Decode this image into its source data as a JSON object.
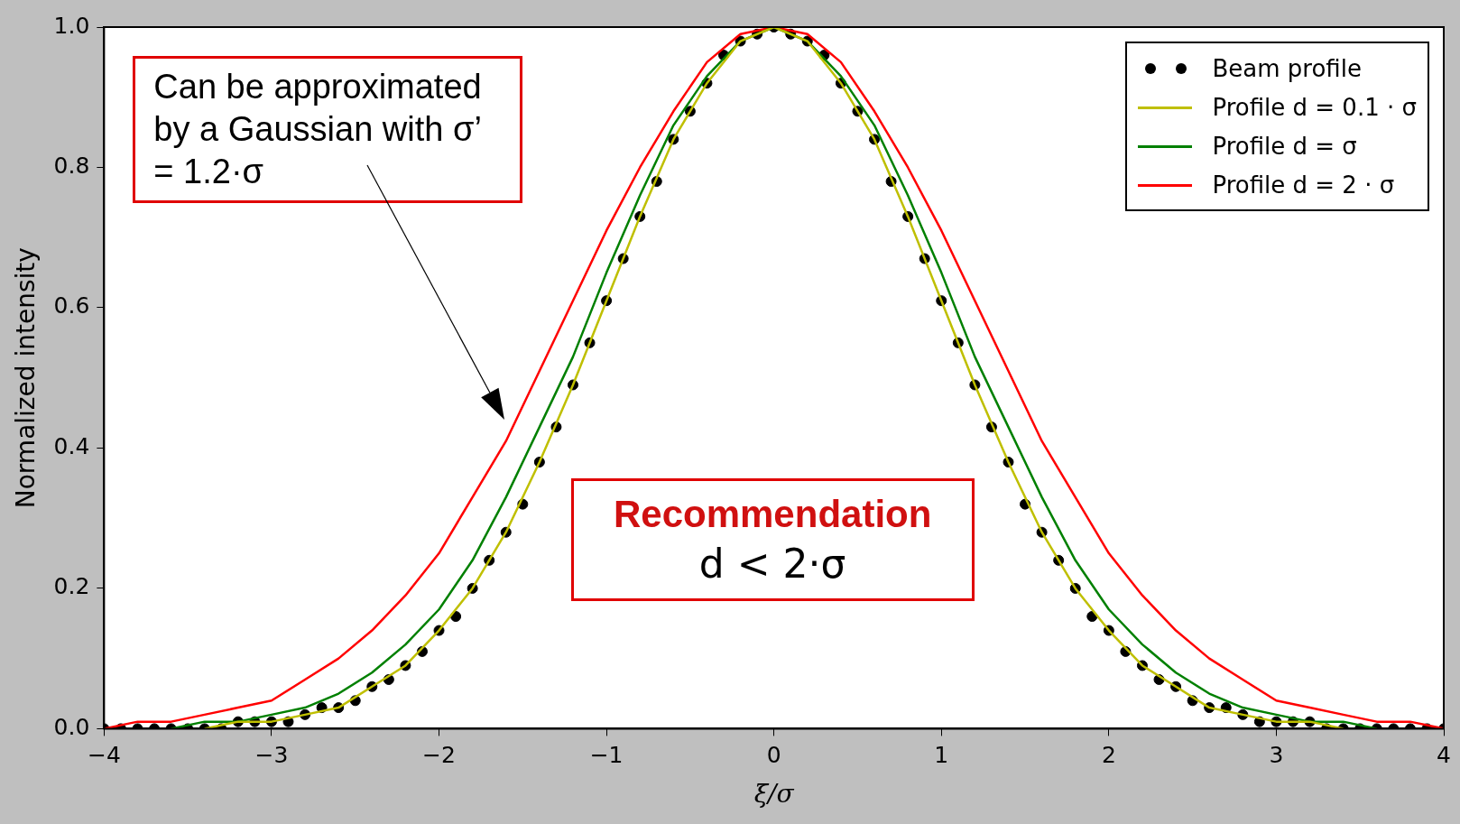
{
  "chart_data": {
    "type": "line",
    "xlabel": "ξ/σ",
    "ylabel": "Normalized intensity",
    "xlim": [
      -4,
      4
    ],
    "xticks": [
      {
        "value": -4,
        "label": "−4"
      },
      {
        "value": -3,
        "label": "−3"
      },
      {
        "value": -2,
        "label": "−2"
      },
      {
        "value": -1,
        "label": "−1"
      },
      0,
      1,
      2,
      3,
      4
    ],
    "ylim": [
      0,
      1
    ],
    "yticks": [
      {
        "value": 0,
        "label": "0.0"
      },
      {
        "value": 0.2,
        "label": "0.2"
      },
      {
        "value": 0.4,
        "label": "0.4"
      },
      {
        "value": 0.6,
        "label": "0.6"
      },
      {
        "value": 0.8,
        "label": "0.8"
      },
      {
        "value": 1,
        "label": "1.0"
      }
    ],
    "grid": false,
    "legend": "top right",
    "line_style": "solid",
    "series": [
      {
        "name": "Beam profile",
        "type": "scatter",
        "marker": "circle",
        "color": "#000000",
        "x": [
          -4,
          -3.9,
          -3.8,
          -3.7,
          -3.6,
          -3.5,
          -3.4,
          -3.3,
          -3.2,
          -3.1,
          -3,
          -2.9,
          -2.8,
          -2.7,
          -2.6,
          -2.5,
          -2.4,
          -2.3,
          -2.2,
          -2.1,
          -2,
          -1.9,
          -1.8,
          -1.7,
          -1.6,
          -1.5,
          -1.4,
          -1.3,
          -1.2,
          -1.1,
          -1,
          -0.9,
          -0.8,
          -0.7,
          -0.6,
          -0.5,
          -0.4,
          -0.3,
          -0.2,
          -0.1,
          0,
          0.1,
          0.2,
          0.3,
          0.4,
          0.5,
          0.6,
          0.7,
          0.8,
          0.9,
          1,
          1.1,
          1.2,
          1.3,
          1.4,
          1.5,
          1.6,
          1.7,
          1.8,
          1.9,
          2,
          2.1,
          2.2,
          2.3,
          2.4,
          2.5,
          2.6,
          2.7,
          2.8,
          2.9,
          3,
          3.1,
          3.2,
          3.3,
          3.4,
          3.5,
          3.6,
          3.7,
          3.8,
          3.9,
          4
        ],
        "values": [
          0,
          0,
          0,
          0,
          0,
          0,
          0,
          0,
          0.01,
          0.01,
          0.01,
          0.01,
          0.02,
          0.03,
          0.03,
          0.04,
          0.06,
          0.07,
          0.09,
          0.11,
          0.14,
          0.16,
          0.2,
          0.24,
          0.28,
          0.32,
          0.38,
          0.43,
          0.49,
          0.55,
          0.61,
          0.67,
          0.73,
          0.78,
          0.84,
          0.88,
          0.92,
          0.96,
          0.98,
          0.99,
          1,
          0.99,
          0.98,
          0.96,
          0.92,
          0.88,
          0.84,
          0.78,
          0.73,
          0.67,
          0.61,
          0.55,
          0.49,
          0.43,
          0.38,
          0.32,
          0.28,
          0.24,
          0.2,
          0.16,
          0.14,
          0.11,
          0.09,
          0.07,
          0.06,
          0.04,
          0.03,
          0.03,
          0.02,
          0.01,
          0.01,
          0.01,
          0.01,
          0,
          0,
          0,
          0,
          0,
          0,
          0,
          0
        ]
      },
      {
        "name": "Profile d = 0.1 · σ",
        "color": "#bfbf00",
        "x": [
          -3.4,
          -3.2,
          -3,
          -2.8,
          -2.6,
          -2.4,
          -2.2,
          -2,
          -1.8,
          -1.6,
          -1.4,
          -1.2,
          -1,
          -0.8,
          -0.6,
          -0.4,
          -0.2,
          0,
          0.2,
          0.4,
          0.6,
          0.8,
          1,
          1.2,
          1.4,
          1.6,
          1.8,
          2,
          2.2,
          2.4,
          2.6,
          2.8,
          3,
          3.2,
          3.4
        ],
        "values": [
          0,
          0.01,
          0.01,
          0.02,
          0.03,
          0.06,
          0.09,
          0.14,
          0.2,
          0.28,
          0.38,
          0.49,
          0.61,
          0.73,
          0.84,
          0.92,
          0.98,
          1,
          0.98,
          0.92,
          0.84,
          0.73,
          0.61,
          0.49,
          0.38,
          0.28,
          0.2,
          0.14,
          0.09,
          0.06,
          0.03,
          0.02,
          0.01,
          0.01,
          0
        ]
      },
      {
        "name": "Profile d = σ",
        "color": "#008000",
        "x": [
          -3.6,
          -3.4,
          -3.2,
          -3,
          -2.8,
          -2.6,
          -2.4,
          -2.2,
          -2,
          -1.8,
          -1.6,
          -1.4,
          -1.2,
          -1,
          -0.8,
          -0.6,
          -0.4,
          -0.2,
          0,
          0.2,
          0.4,
          0.6,
          0.8,
          1,
          1.2,
          1.4,
          1.6,
          1.8,
          2,
          2.2,
          2.4,
          2.6,
          2.8,
          3,
          3.2,
          3.4,
          3.6
        ],
        "values": [
          0,
          0.01,
          0.01,
          0.02,
          0.03,
          0.05,
          0.08,
          0.12,
          0.17,
          0.24,
          0.33,
          0.43,
          0.53,
          0.65,
          0.76,
          0.86,
          0.93,
          0.98,
          1,
          0.98,
          0.93,
          0.86,
          0.76,
          0.65,
          0.53,
          0.43,
          0.33,
          0.24,
          0.17,
          0.12,
          0.08,
          0.05,
          0.03,
          0.02,
          0.01,
          0.01,
          0
        ]
      },
      {
        "name": "Profile d = 2 · σ",
        "color": "#ff0000",
        "x": [
          -4,
          -3.8,
          -3.6,
          -3.4,
          -3.2,
          -3,
          -2.8,
          -2.6,
          -2.4,
          -2.2,
          -2,
          -1.8,
          -1.6,
          -1.4,
          -1.2,
          -1,
          -0.8,
          -0.6,
          -0.4,
          -0.2,
          0,
          0.2,
          0.4,
          0.6,
          0.8,
          1,
          1.2,
          1.4,
          1.6,
          1.8,
          2,
          2.2,
          2.4,
          2.6,
          2.8,
          3,
          3.2,
          3.4,
          3.6,
          3.8,
          4
        ],
        "values": [
          0,
          0.01,
          0.01,
          0.02,
          0.03,
          0.04,
          0.07,
          0.1,
          0.14,
          0.19,
          0.25,
          0.33,
          0.41,
          0.51,
          0.61,
          0.71,
          0.8,
          0.88,
          0.95,
          0.99,
          1,
          0.99,
          0.95,
          0.88,
          0.8,
          0.71,
          0.61,
          0.51,
          0.41,
          0.33,
          0.25,
          0.19,
          0.14,
          0.1,
          0.07,
          0.04,
          0.03,
          0.02,
          0.01,
          0.01,
          0
        ]
      }
    ],
    "annotations": [
      "Can be approximated by a Gaussian with σ’ = 1.2·σ",
      "Recommendation",
      "d < 2·σ"
    ]
  }
}
